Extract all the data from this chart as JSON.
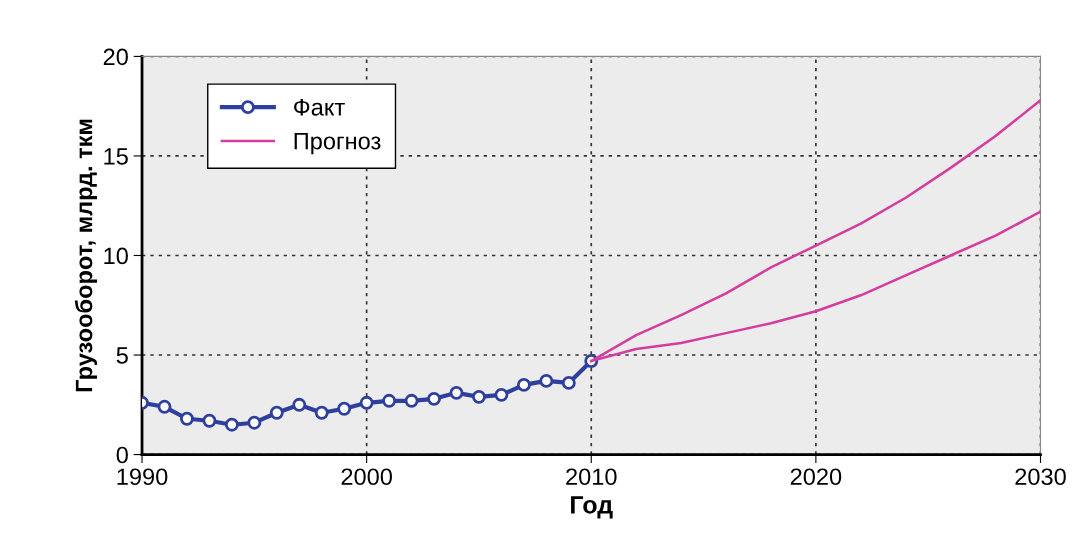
{
  "chart_data": {
    "type": "line",
    "xlabel": "Год",
    "ylabel": "Грузооборот, млрд. ткм",
    "xlim": [
      1990,
      2030
    ],
    "xticks": [
      1990,
      2000,
      2010,
      2020,
      2030
    ],
    "ylim": [
      0,
      20
    ],
    "yticks": [
      0,
      5,
      10,
      15,
      20
    ],
    "grid": true,
    "legend": "top left",
    "series": [
      {
        "name": "Факт",
        "color": "#2e3f9e",
        "marker": "circle",
        "x": [
          1990,
          1991,
          1992,
          1993,
          1994,
          1995,
          1996,
          1997,
          1998,
          1999,
          2000,
          2001,
          2002,
          2003,
          2004,
          2005,
          2006,
          2007,
          2008,
          2009,
          2010
        ],
        "values": [
          2.6,
          2.4,
          1.8,
          1.7,
          1.5,
          1.6,
          2.1,
          2.5,
          2.1,
          2.3,
          2.6,
          2.7,
          2.7,
          2.8,
          3.1,
          2.9,
          3.0,
          3.5,
          3.7,
          3.6,
          4.7
        ]
      },
      {
        "name": "Прогноз",
        "color": "#d63ca0",
        "marker": "none",
        "x": [
          2010,
          2012,
          2014,
          2016,
          2018,
          2020,
          2022,
          2024,
          2026,
          2028,
          2030
        ],
        "values": [
          4.7,
          6.0,
          7.0,
          8.1,
          9.4,
          10.5,
          11.6,
          12.9,
          14.4,
          16.0,
          17.8
        ]
      },
      {
        "color": "#d63ca0",
        "marker": "none",
        "x": [
          2010,
          2012,
          2014,
          2016,
          2018,
          2020,
          2022,
          2024,
          2026,
          2028,
          2030
        ],
        "values": [
          4.7,
          5.3,
          5.6,
          6.1,
          6.6,
          7.2,
          8.0,
          9.0,
          10.0,
          11.0,
          12.2
        ]
      }
    ]
  }
}
